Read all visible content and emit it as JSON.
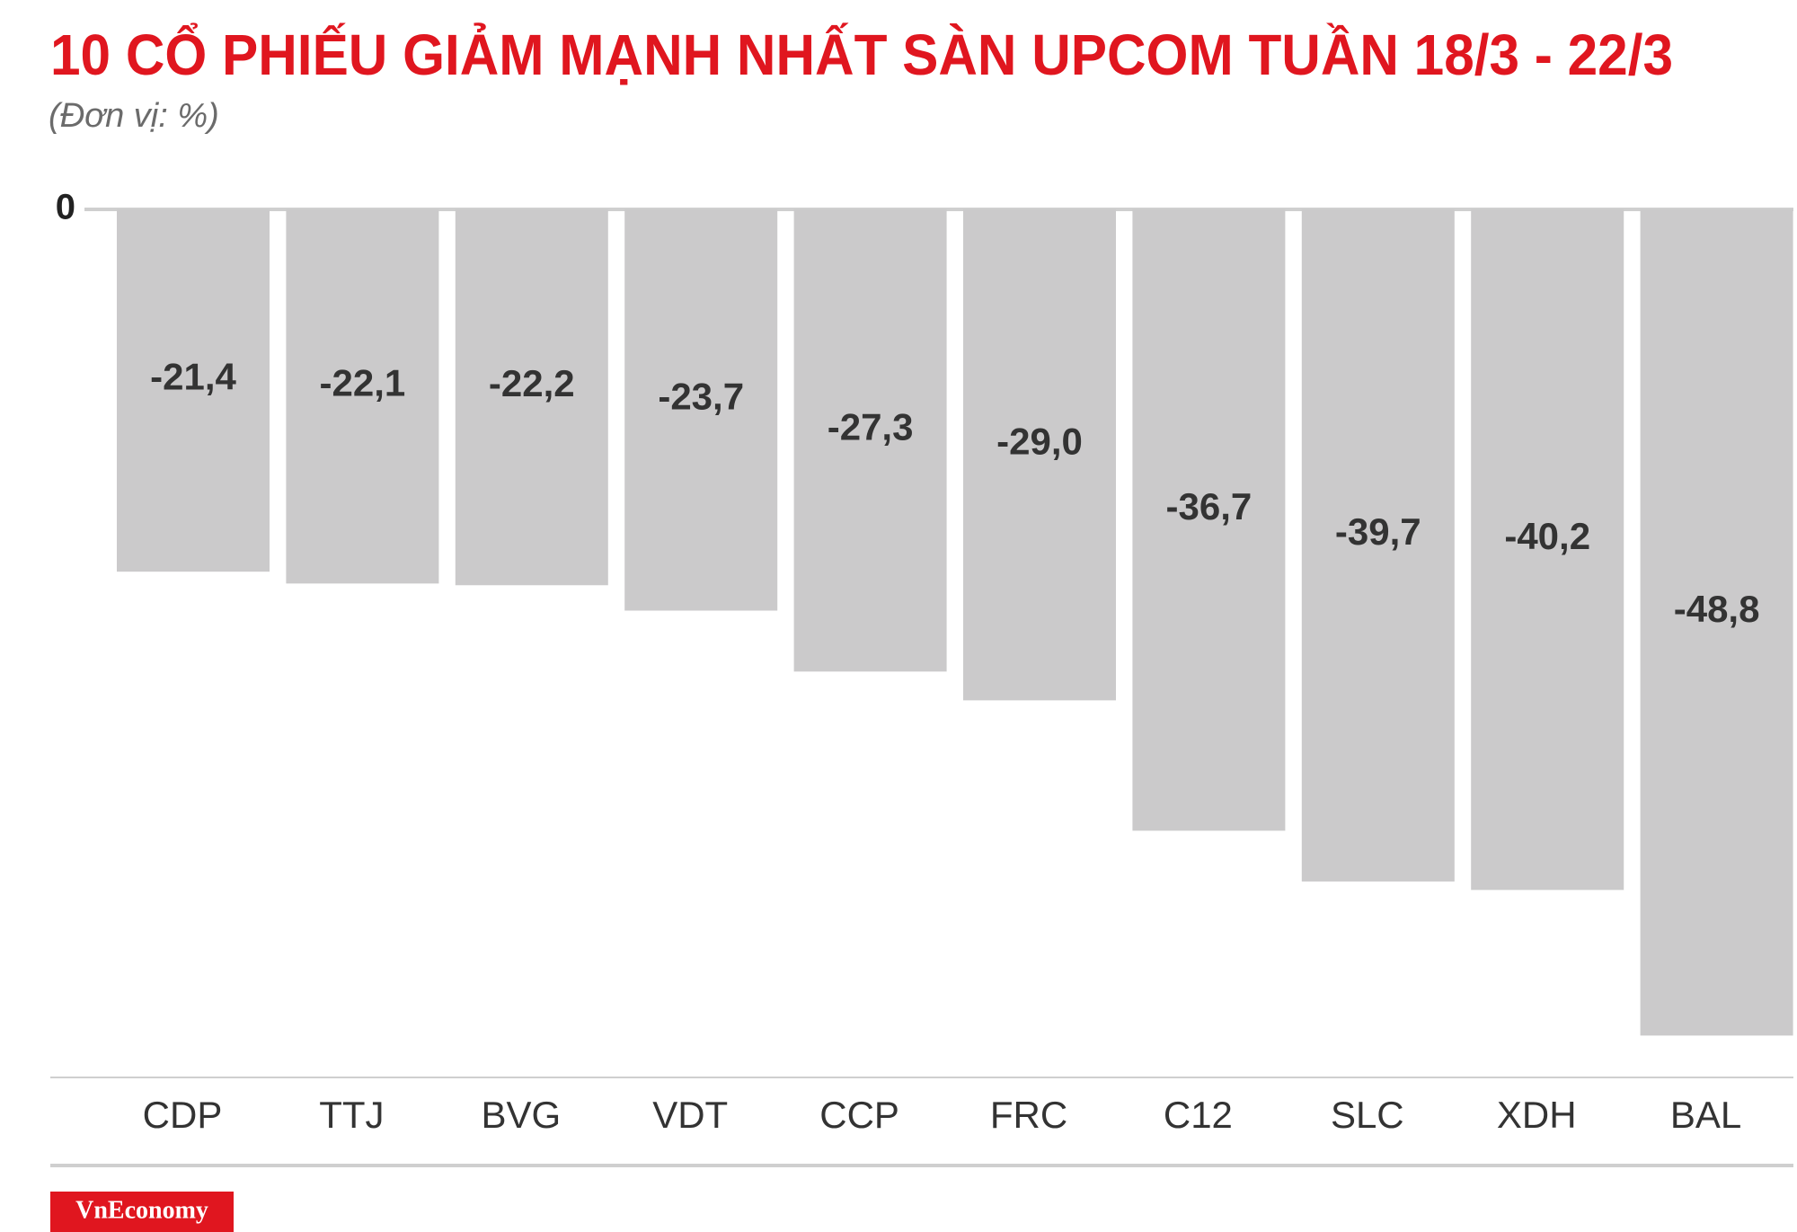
{
  "chart_data": {
    "type": "bar",
    "title": "10 CỔ PHIẾU GIẢM MẠNH NHẤT SÀN UPCOM TUẦN 18/3 - 22/3",
    "subtitle": "(Đơn vị: %)",
    "categories": [
      "CDP",
      "TTJ",
      "BVG",
      "VDT",
      "CCP",
      "FRC",
      "C12",
      "SLC",
      "XDH",
      "BAL"
    ],
    "values": [
      -21.4,
      -22.1,
      -22.2,
      -23.7,
      -27.3,
      -29.0,
      -36.7,
      -39.7,
      -40.2,
      -48.8
    ],
    "value_labels": [
      "-21,4",
      "-22,1",
      "-22,2",
      "-23,7",
      "-27,3",
      "-29,0",
      "-36,7",
      "-39,7",
      "-40,2",
      "-48,8"
    ],
    "color": "#cbcacb",
    "ylim": [
      -50,
      0
    ],
    "yticks": [
      0
    ],
    "logo": "VnEconomy"
  }
}
